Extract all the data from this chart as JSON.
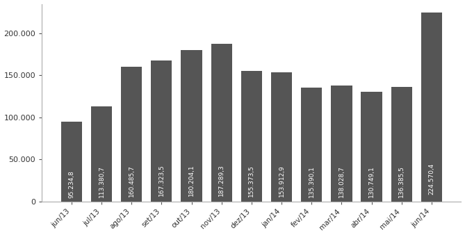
{
  "categories": [
    "jun/13",
    "jul/13",
    "ago/13",
    "set/13",
    "out/13",
    "nov/13",
    "dez/13",
    "jan/14",
    "fev/14",
    "mar/14",
    "abr/14",
    "mai/14",
    "jun/14"
  ],
  "values": [
    95234.8,
    113380.7,
    160485.7,
    167323.5,
    180204.1,
    187289.3,
    155373.5,
    153912.9,
    135390.1,
    138028.7,
    130749.1,
    136385.5,
    224570.4
  ],
  "bar_color": "#555555",
  "bar_labels": [
    "95.234,8",
    "113.380,7",
    "160.485,7",
    "167.323,5",
    "180.204,1",
    "187.289,3",
    "155.373,5",
    "153.912,9",
    "135.390,1",
    "138.028,7",
    "130.749,1",
    "136.385,5",
    "224.570,4"
  ],
  "ylim": [
    0,
    235000
  ],
  "yticks": [
    0,
    50000,
    100000,
    150000,
    200000
  ],
  "ytick_labels": [
    "0",
    "50.000",
    "100.000",
    "150.000",
    "200.000"
  ],
  "background_color": "#ffffff",
  "bar_label_color": "#ffffff",
  "bar_label_fontsize": 6.5,
  "xtick_fontsize": 7.5,
  "ytick_fontsize": 8
}
